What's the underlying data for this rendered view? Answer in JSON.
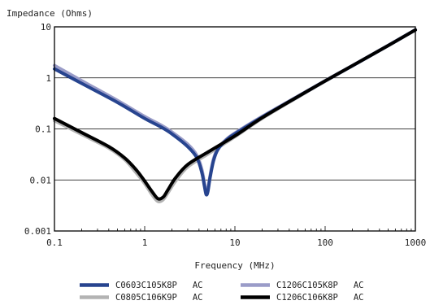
{
  "chart_data": {
    "type": "line",
    "title": "",
    "ylabel": "Impedance (Ohms)",
    "xlabel": "Frequency (MHz)",
    "x_scale": "log",
    "y_scale": "log",
    "xlim": [
      0.1,
      1000
    ],
    "ylim": [
      0.001,
      10
    ],
    "x_ticks": [
      0.1,
      1,
      10,
      100,
      1000
    ],
    "x_tick_labels": [
      "0.1",
      "1",
      "10",
      "100",
      "1000"
    ],
    "y_ticks": [
      0.001,
      0.01,
      0.1,
      1,
      10
    ],
    "y_tick_labels": [
      "0.001",
      "0.01",
      "0.1",
      "1",
      "10"
    ],
    "grid": "horizontal",
    "legend_position": "bottom",
    "series": [
      {
        "name": "C0603C105K8P   AC",
        "color": "#27448f",
        "points": [
          [
            0.1,
            1.5
          ],
          [
            0.2,
            0.78
          ],
          [
            0.5,
            0.33
          ],
          [
            1,
            0.16
          ],
          [
            1.5,
            0.11
          ],
          [
            2,
            0.08
          ],
          [
            3,
            0.045
          ],
          [
            3.8,
            0.027
          ],
          [
            4.3,
            0.014
          ],
          [
            4.6,
            0.0075
          ],
          [
            4.8,
            0.0052
          ],
          [
            5.0,
            0.0058
          ],
          [
            5.3,
            0.011
          ],
          [
            5.8,
            0.024
          ],
          [
            6.5,
            0.04
          ],
          [
            8,
            0.06
          ],
          [
            10,
            0.08
          ],
          [
            20,
            0.17
          ],
          [
            50,
            0.43
          ],
          [
            100,
            0.87
          ],
          [
            200,
            1.72
          ],
          [
            500,
            4.3
          ],
          [
            1000,
            8.7
          ]
        ]
      },
      {
        "name": "C1206C105K8P   AC",
        "color": "#9a9cc8",
        "points": [
          [
            0.1,
            1.75
          ],
          [
            0.2,
            0.88
          ],
          [
            0.5,
            0.36
          ],
          [
            1,
            0.175
          ],
          [
            1.5,
            0.12
          ],
          [
            2,
            0.087
          ],
          [
            3,
            0.05
          ],
          [
            3.8,
            0.03
          ],
          [
            4.3,
            0.016
          ],
          [
            4.6,
            0.0085
          ],
          [
            4.8,
            0.0058
          ],
          [
            5.0,
            0.0064
          ],
          [
            5.3,
            0.012
          ],
          [
            5.8,
            0.026
          ],
          [
            6.5,
            0.042
          ],
          [
            8,
            0.062
          ],
          [
            10,
            0.083
          ],
          [
            20,
            0.175
          ],
          [
            50,
            0.44
          ],
          [
            100,
            0.88
          ],
          [
            200,
            1.74
          ],
          [
            500,
            4.35
          ],
          [
            1000,
            8.8
          ]
        ]
      },
      {
        "name": "C0805C106K9P   AC",
        "color": "#b3b3b3",
        "points": [
          [
            0.1,
            0.145
          ],
          [
            0.2,
            0.078
          ],
          [
            0.4,
            0.042
          ],
          [
            0.6,
            0.025
          ],
          [
            0.8,
            0.014
          ],
          [
            1.0,
            0.0085
          ],
          [
            1.2,
            0.0052
          ],
          [
            1.4,
            0.0038
          ],
          [
            1.6,
            0.0041
          ],
          [
            1.8,
            0.0055
          ],
          [
            2.2,
            0.0095
          ],
          [
            3,
            0.018
          ],
          [
            5,
            0.032
          ],
          [
            10,
            0.07
          ],
          [
            20,
            0.16
          ],
          [
            50,
            0.42
          ],
          [
            100,
            0.86
          ],
          [
            200,
            1.72
          ],
          [
            500,
            4.3
          ],
          [
            1000,
            8.7
          ]
        ]
      },
      {
        "name": "C1206C106K8P   AC",
        "color": "#000000",
        "points": [
          [
            0.1,
            0.16
          ],
          [
            0.2,
            0.085
          ],
          [
            0.4,
            0.045
          ],
          [
            0.6,
            0.027
          ],
          [
            0.8,
            0.016
          ],
          [
            1.0,
            0.0095
          ],
          [
            1.2,
            0.006
          ],
          [
            1.4,
            0.0043
          ],
          [
            1.6,
            0.0046
          ],
          [
            1.8,
            0.0063
          ],
          [
            2.2,
            0.011
          ],
          [
            3,
            0.02
          ],
          [
            5,
            0.035
          ],
          [
            10,
            0.073
          ],
          [
            20,
            0.165
          ],
          [
            50,
            0.43
          ],
          [
            100,
            0.87
          ],
          [
            200,
            1.73
          ],
          [
            500,
            4.3
          ],
          [
            1000,
            8.7
          ]
        ]
      }
    ]
  }
}
